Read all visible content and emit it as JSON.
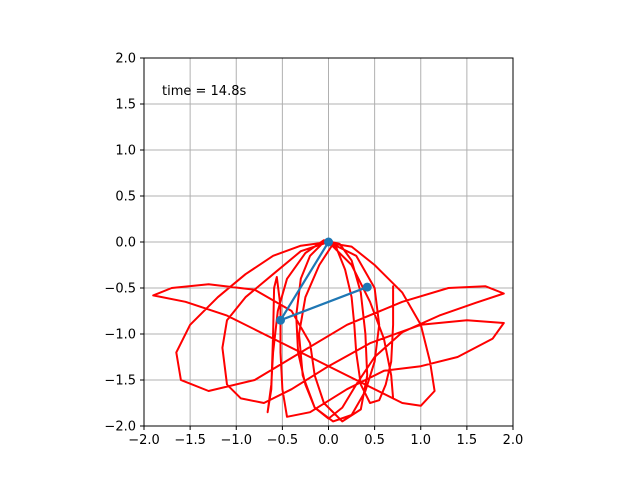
{
  "chart_data": {
    "type": "line",
    "title": "",
    "xlabel": "",
    "ylabel": "",
    "xlim": [
      -2.0,
      2.0
    ],
    "ylim": [
      -2.0,
      2.0
    ],
    "grid": true,
    "aspect": "equal",
    "x_ticks": [
      "−2.0",
      "−1.5",
      "−1.0",
      "−0.5",
      "0.0",
      "0.5",
      "1.0",
      "1.5",
      "2.0"
    ],
    "y_ticks": [
      "−2.0",
      "−1.5",
      "−1.0",
      "−0.5",
      "0.0",
      "0.5",
      "1.0",
      "1.5",
      "2.0"
    ],
    "annotation": "time = 14.8s",
    "colors": {
      "pendulum": "#1f77b4",
      "trace": "#ff0000",
      "grid": "#b0b0b0"
    },
    "pendulum": {
      "pivot": [
        0.0,
        0.0
      ],
      "mass1": [
        -0.52,
        -0.85
      ],
      "mass2": [
        0.42,
        -0.49
      ]
    },
    "trace": [
      [
        0.7,
        -0.48
      ],
      [
        0.7,
        -0.9
      ],
      [
        0.68,
        -1.3
      ],
      [
        0.62,
        -1.55
      ],
      [
        0.55,
        -1.72
      ],
      [
        0.45,
        -1.75
      ],
      [
        0.35,
        -1.55
      ],
      [
        0.3,
        -1.2
      ],
      [
        0.28,
        -0.9
      ],
      [
        0.25,
        -0.6
      ],
      [
        0.18,
        -0.3
      ],
      [
        0.08,
        -0.05
      ],
      [
        -0.05,
        0.0
      ],
      [
        -0.2,
        -0.15
      ],
      [
        -0.3,
        -0.4
      ],
      [
        -0.35,
        -0.8
      ],
      [
        -0.33,
        -1.2
      ],
      [
        -0.25,
        -1.55
      ],
      [
        -0.15,
        -1.8
      ],
      [
        0.0,
        -1.92
      ],
      [
        0.15,
        -1.8
      ],
      [
        0.3,
        -1.55
      ],
      [
        0.5,
        -1.25
      ],
      [
        0.8,
        -0.98
      ],
      [
        1.2,
        -0.8
      ],
      [
        1.6,
        -0.66
      ],
      [
        1.9,
        -0.56
      ],
      [
        1.7,
        -0.48
      ],
      [
        1.3,
        -0.5
      ],
      [
        0.8,
        -0.65
      ],
      [
        0.2,
        -0.9
      ],
      [
        -0.3,
        -1.2
      ],
      [
        -0.8,
        -1.5
      ],
      [
        -1.3,
        -1.62
      ],
      [
        -1.6,
        -1.5
      ],
      [
        -1.65,
        -1.2
      ],
      [
        -1.5,
        -0.9
      ],
      [
        -1.2,
        -0.6
      ],
      [
        -0.9,
        -0.35
      ],
      [
        -0.6,
        -0.15
      ],
      [
        -0.3,
        -0.04
      ],
      [
        0.0,
        0.0
      ],
      [
        0.3,
        -0.15
      ],
      [
        0.5,
        -0.5
      ],
      [
        0.55,
        -0.9
      ],
      [
        0.5,
        -1.3
      ],
      [
        0.4,
        -1.62
      ],
      [
        0.25,
        -1.88
      ],
      [
        0.05,
        -1.95
      ],
      [
        -0.15,
        -1.8
      ],
      [
        -0.28,
        -1.45
      ],
      [
        -0.32,
        -1.0
      ],
      [
        -0.25,
        -0.6
      ],
      [
        -0.1,
        -0.25
      ],
      [
        0.05,
        -0.02
      ],
      [
        0.25,
        -0.05
      ],
      [
        0.5,
        -0.25
      ],
      [
        0.8,
        -0.55
      ],
      [
        1.0,
        -0.9
      ],
      [
        1.1,
        -1.3
      ],
      [
        1.15,
        -1.62
      ],
      [
        1.0,
        -1.78
      ],
      [
        0.8,
        -1.75
      ],
      [
        0.4,
        -1.55
      ],
      [
        -0.1,
        -1.3
      ],
      [
        -0.6,
        -1.05
      ],
      [
        -1.1,
        -0.8
      ],
      [
        -1.55,
        -0.65
      ],
      [
        -1.9,
        -0.58
      ],
      [
        -1.7,
        -0.5
      ],
      [
        -1.3,
        -0.46
      ],
      [
        -0.8,
        -0.52
      ],
      [
        -0.4,
        -0.75
      ],
      [
        -0.2,
        -1.1
      ],
      [
        -0.15,
        -1.45
      ],
      [
        -0.05,
        -1.75
      ],
      [
        0.15,
        -1.95
      ],
      [
        0.35,
        -1.82
      ],
      [
        0.42,
        -1.45
      ],
      [
        0.4,
        -1.0
      ],
      [
        0.35,
        -0.55
      ],
      [
        0.25,
        -0.2
      ],
      [
        0.12,
        -0.02
      ],
      [
        -0.05,
        0.02
      ],
      [
        -0.25,
        -0.12
      ],
      [
        -0.45,
        -0.4
      ],
      [
        -0.55,
        -0.75
      ],
      [
        -0.6,
        -1.2
      ],
      [
        -0.62,
        -1.55
      ],
      [
        -0.66,
        -1.85
      ],
      [
        -0.62,
        -1.6
      ],
      [
        -0.6,
        -1.0
      ],
      [
        -0.59,
        -0.5
      ],
      [
        -0.56,
        -0.38
      ],
      [
        -0.52,
        -0.7
      ],
      [
        -0.52,
        -1.2
      ],
      [
        -0.5,
        -1.6
      ],
      [
        -0.45,
        -1.9
      ],
      [
        -0.2,
        -1.85
      ],
      [
        0.2,
        -1.6
      ],
      [
        0.6,
        -1.4
      ],
      [
        1.0,
        -1.35
      ],
      [
        1.4,
        -1.25
      ],
      [
        1.78,
        -1.05
      ],
      [
        1.9,
        -0.88
      ],
      [
        1.5,
        -0.85
      ],
      [
        1.0,
        -0.9
      ],
      [
        0.45,
        -1.1
      ],
      [
        0.0,
        -1.35
      ],
      [
        -0.4,
        -1.6
      ],
      [
        -0.7,
        -1.75
      ],
      [
        -0.95,
        -1.7
      ],
      [
        -1.1,
        -1.55
      ],
      [
        -1.15,
        -1.15
      ],
      [
        -1.1,
        -0.85
      ],
      [
        -0.9,
        -0.6
      ],
      [
        -0.6,
        -0.35
      ],
      [
        -0.3,
        -0.1
      ],
      [
        0.0,
        0.0
      ],
      [
        0.25,
        -0.25
      ],
      [
        0.45,
        -0.65
      ],
      [
        0.6,
        -1.05
      ],
      [
        0.68,
        -1.45
      ],
      [
        0.7,
        -1.7
      ]
    ]
  }
}
